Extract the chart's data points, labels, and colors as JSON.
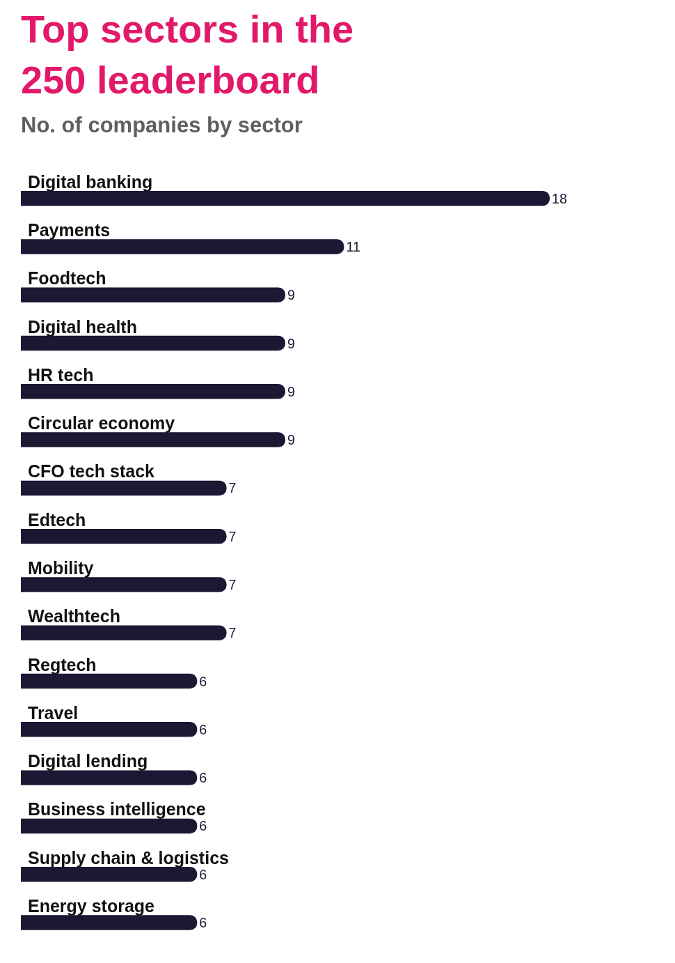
{
  "chart_data": {
    "type": "bar",
    "orientation": "horizontal",
    "title": "Top sectors in the 250 leaderboard",
    "subtitle": "No. of companies by sector",
    "categories": [
      "Digital banking",
      "Payments",
      "Foodtech",
      "Digital health",
      "HR tech",
      "Circular economy",
      "CFO tech stack",
      "Edtech",
      "Mobility",
      "Wealthtech",
      "Regtech",
      "Travel",
      "Digital lending",
      "Business intelligence",
      "Supply chain & logistics",
      "Energy storage"
    ],
    "values": [
      18,
      11,
      9,
      9,
      9,
      9,
      7,
      7,
      7,
      7,
      6,
      6,
      6,
      6,
      6,
      6
    ],
    "color": "#1b1834",
    "data_labels": true,
    "legend": false
  }
}
